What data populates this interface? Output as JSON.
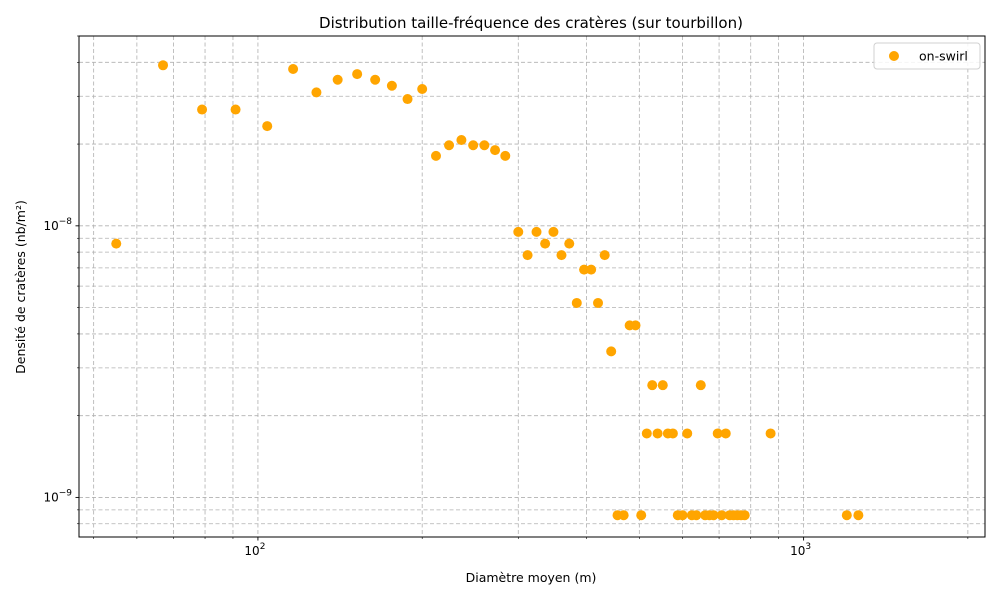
{
  "chart_data": {
    "type": "scatter",
    "title": "Distribution taille-fréquence des cratères (sur tourbillon)",
    "xlabel": "Diamètre moyen (m)",
    "ylabel": "Densité de cratères (nb/m²)",
    "xscale": "log",
    "yscale": "log",
    "xlim": [
      47,
      2150
    ],
    "ylim": [
      7.15e-10,
      5e-08
    ],
    "grid": true,
    "grid_which": "both",
    "legend_position": "top-right",
    "x_ticks": [
      {
        "value": 100,
        "base": "10",
        "exp": "2"
      },
      {
        "value": 1000,
        "base": "10",
        "exp": "3"
      }
    ],
    "y_ticks": [
      {
        "value": 1e-09,
        "base": "10",
        "exp": "−9"
      },
      {
        "value": 1e-08,
        "base": "10",
        "exp": "−8"
      }
    ],
    "series": [
      {
        "name": "on-swirl",
        "color": "#FFA500",
        "points": [
          [
            55,
            8.6e-09
          ],
          [
            67,
            3.9e-08
          ],
          [
            79,
            2.68e-08
          ],
          [
            91,
            2.68e-08
          ],
          [
            104,
            2.33e-08
          ],
          [
            116,
            3.78e-08
          ],
          [
            128,
            3.1e-08
          ],
          [
            140,
            3.45e-08
          ],
          [
            152,
            3.62e-08
          ],
          [
            164,
            3.45e-08
          ],
          [
            176,
            3.28e-08
          ],
          [
            188,
            2.93e-08
          ],
          [
            200,
            3.19e-08
          ],
          [
            212,
            1.81e-08
          ],
          [
            224,
            1.98e-08
          ],
          [
            236,
            2.07e-08
          ],
          [
            248,
            1.98e-08
          ],
          [
            260,
            1.98e-08
          ],
          [
            272,
            1.9e-08
          ],
          [
            284,
            1.81e-08
          ],
          [
            300,
            9.5e-09
          ],
          [
            312,
            7.8e-09
          ],
          [
            324,
            9.5e-09
          ],
          [
            336,
            8.6e-09
          ],
          [
            348,
            9.5e-09
          ],
          [
            360,
            7.8e-09
          ],
          [
            372,
            8.6e-09
          ],
          [
            384,
            5.2e-09
          ],
          [
            396,
            6.9e-09
          ],
          [
            408,
            6.9e-09
          ],
          [
            420,
            5.2e-09
          ],
          [
            432,
            7.8e-09
          ],
          [
            444,
            3.45e-09
          ],
          [
            456,
            8.6e-10
          ],
          [
            468,
            8.6e-10
          ],
          [
            480,
            4.3e-09
          ],
          [
            492,
            4.3e-09
          ],
          [
            504,
            8.6e-10
          ],
          [
            516,
            1.72e-09
          ],
          [
            528,
            2.59e-09
          ],
          [
            540,
            1.72e-09
          ],
          [
            552,
            2.59e-09
          ],
          [
            564,
            1.72e-09
          ],
          [
            576,
            1.72e-09
          ],
          [
            588,
            8.6e-10
          ],
          [
            600,
            8.6e-10
          ],
          [
            612,
            1.72e-09
          ],
          [
            624,
            8.6e-10
          ],
          [
            636,
            8.6e-10
          ],
          [
            648,
            2.59e-09
          ],
          [
            660,
            8.6e-10
          ],
          [
            672,
            8.6e-10
          ],
          [
            684,
            8.6e-10
          ],
          [
            696,
            1.72e-09
          ],
          [
            708,
            8.6e-10
          ],
          [
            720,
            1.72e-09
          ],
          [
            732,
            8.6e-10
          ],
          [
            744,
            8.6e-10
          ],
          [
            756,
            8.6e-10
          ],
          [
            768,
            8.6e-10
          ],
          [
            780,
            8.6e-10
          ],
          [
            870,
            1.72e-09
          ],
          [
            1200,
            8.6e-10
          ],
          [
            1260,
            8.6e-10
          ]
        ]
      }
    ]
  }
}
